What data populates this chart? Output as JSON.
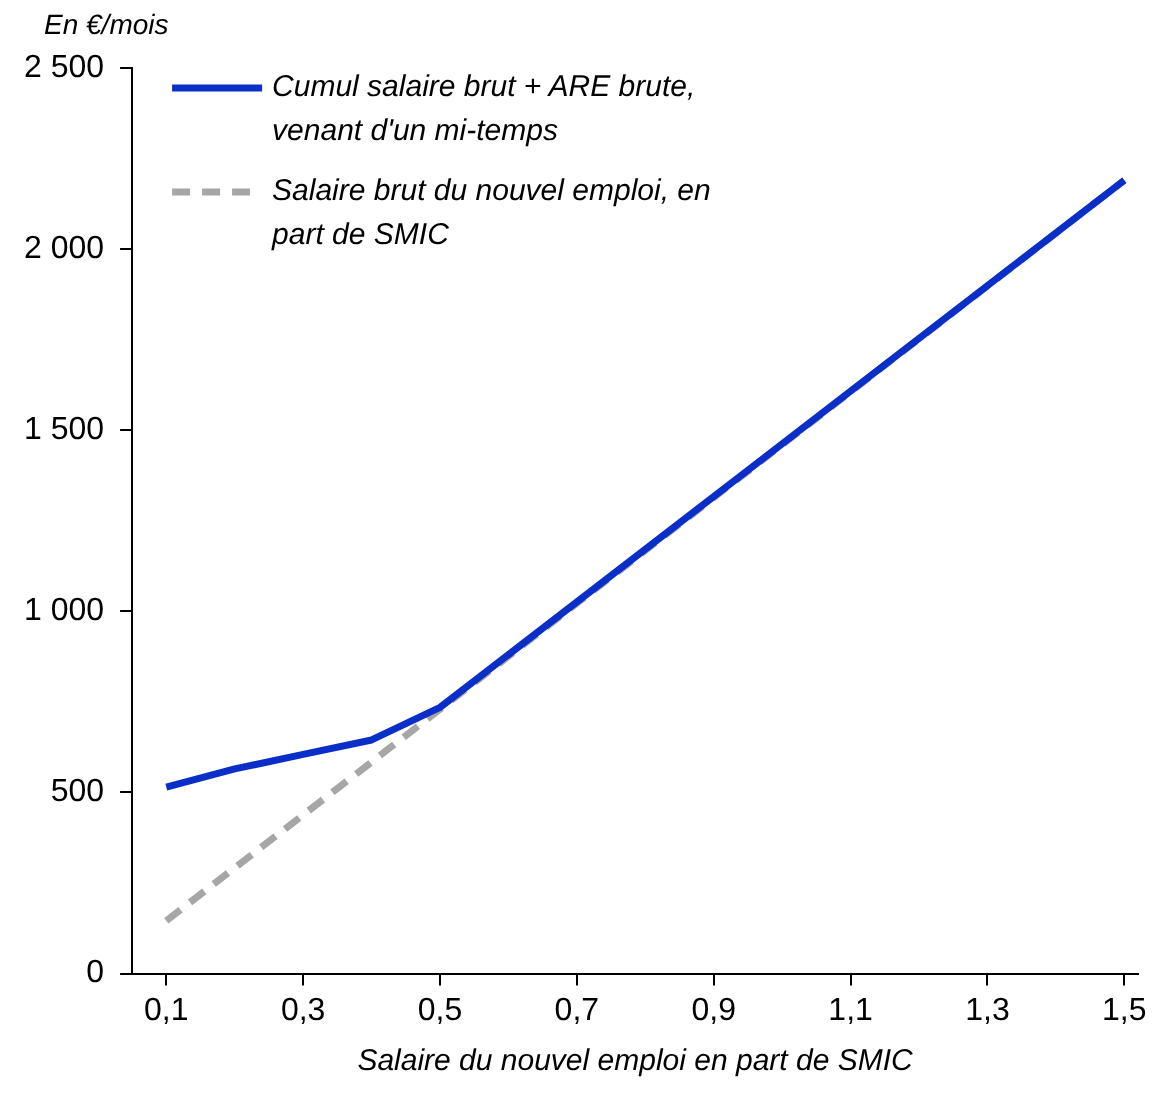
{
  "chart_data": {
    "type": "line",
    "ylabel": "En €/mois",
    "xlabel": "Salaire du nouvel emploi en part de SMIC",
    "xlim": [
      0.05,
      1.52
    ],
    "xticks": [
      {
        "value": 0.1,
        "label": "0,1"
      },
      {
        "value": 0.3,
        "label": "0,3"
      },
      {
        "value": 0.5,
        "label": "0,5"
      },
      {
        "value": 0.7,
        "label": "0,7"
      },
      {
        "value": 0.9,
        "label": "0,9"
      },
      {
        "value": 1.1,
        "label": "1,1"
      },
      {
        "value": 1.3,
        "label": "1,3"
      },
      {
        "value": 1.5,
        "label": "1,5"
      }
    ],
    "ylim": [
      0,
      2500
    ],
    "yticks": [
      0,
      500,
      {
        "value": 1000,
        "label": "1 000"
      },
      {
        "value": 1500,
        "label": "1 500"
      },
      {
        "value": 2000,
        "label": "2 000"
      },
      {
        "value": 2500,
        "label": "2 500"
      }
    ],
    "grid": false,
    "legend": "top left",
    "marker": "none",
    "series": [
      {
        "name": "Cumul salaire brut + ARE brute, venant d'un mi-temps",
        "color": "#0a2fc8",
        "line_style": "solid",
        "x": [
          0.1,
          0.2,
          0.3,
          0.4,
          0.5,
          1.5
        ],
        "values": [
          515,
          565,
          605,
          645,
          735,
          2190
        ]
      },
      {
        "name": "Salaire brut du nouvel emploi, en part de SMIC",
        "color": "#a6a6a6",
        "line_style": "dashed",
        "x": [
          0.1,
          1.5
        ],
        "values": [
          146,
          2190
        ]
      }
    ]
  }
}
